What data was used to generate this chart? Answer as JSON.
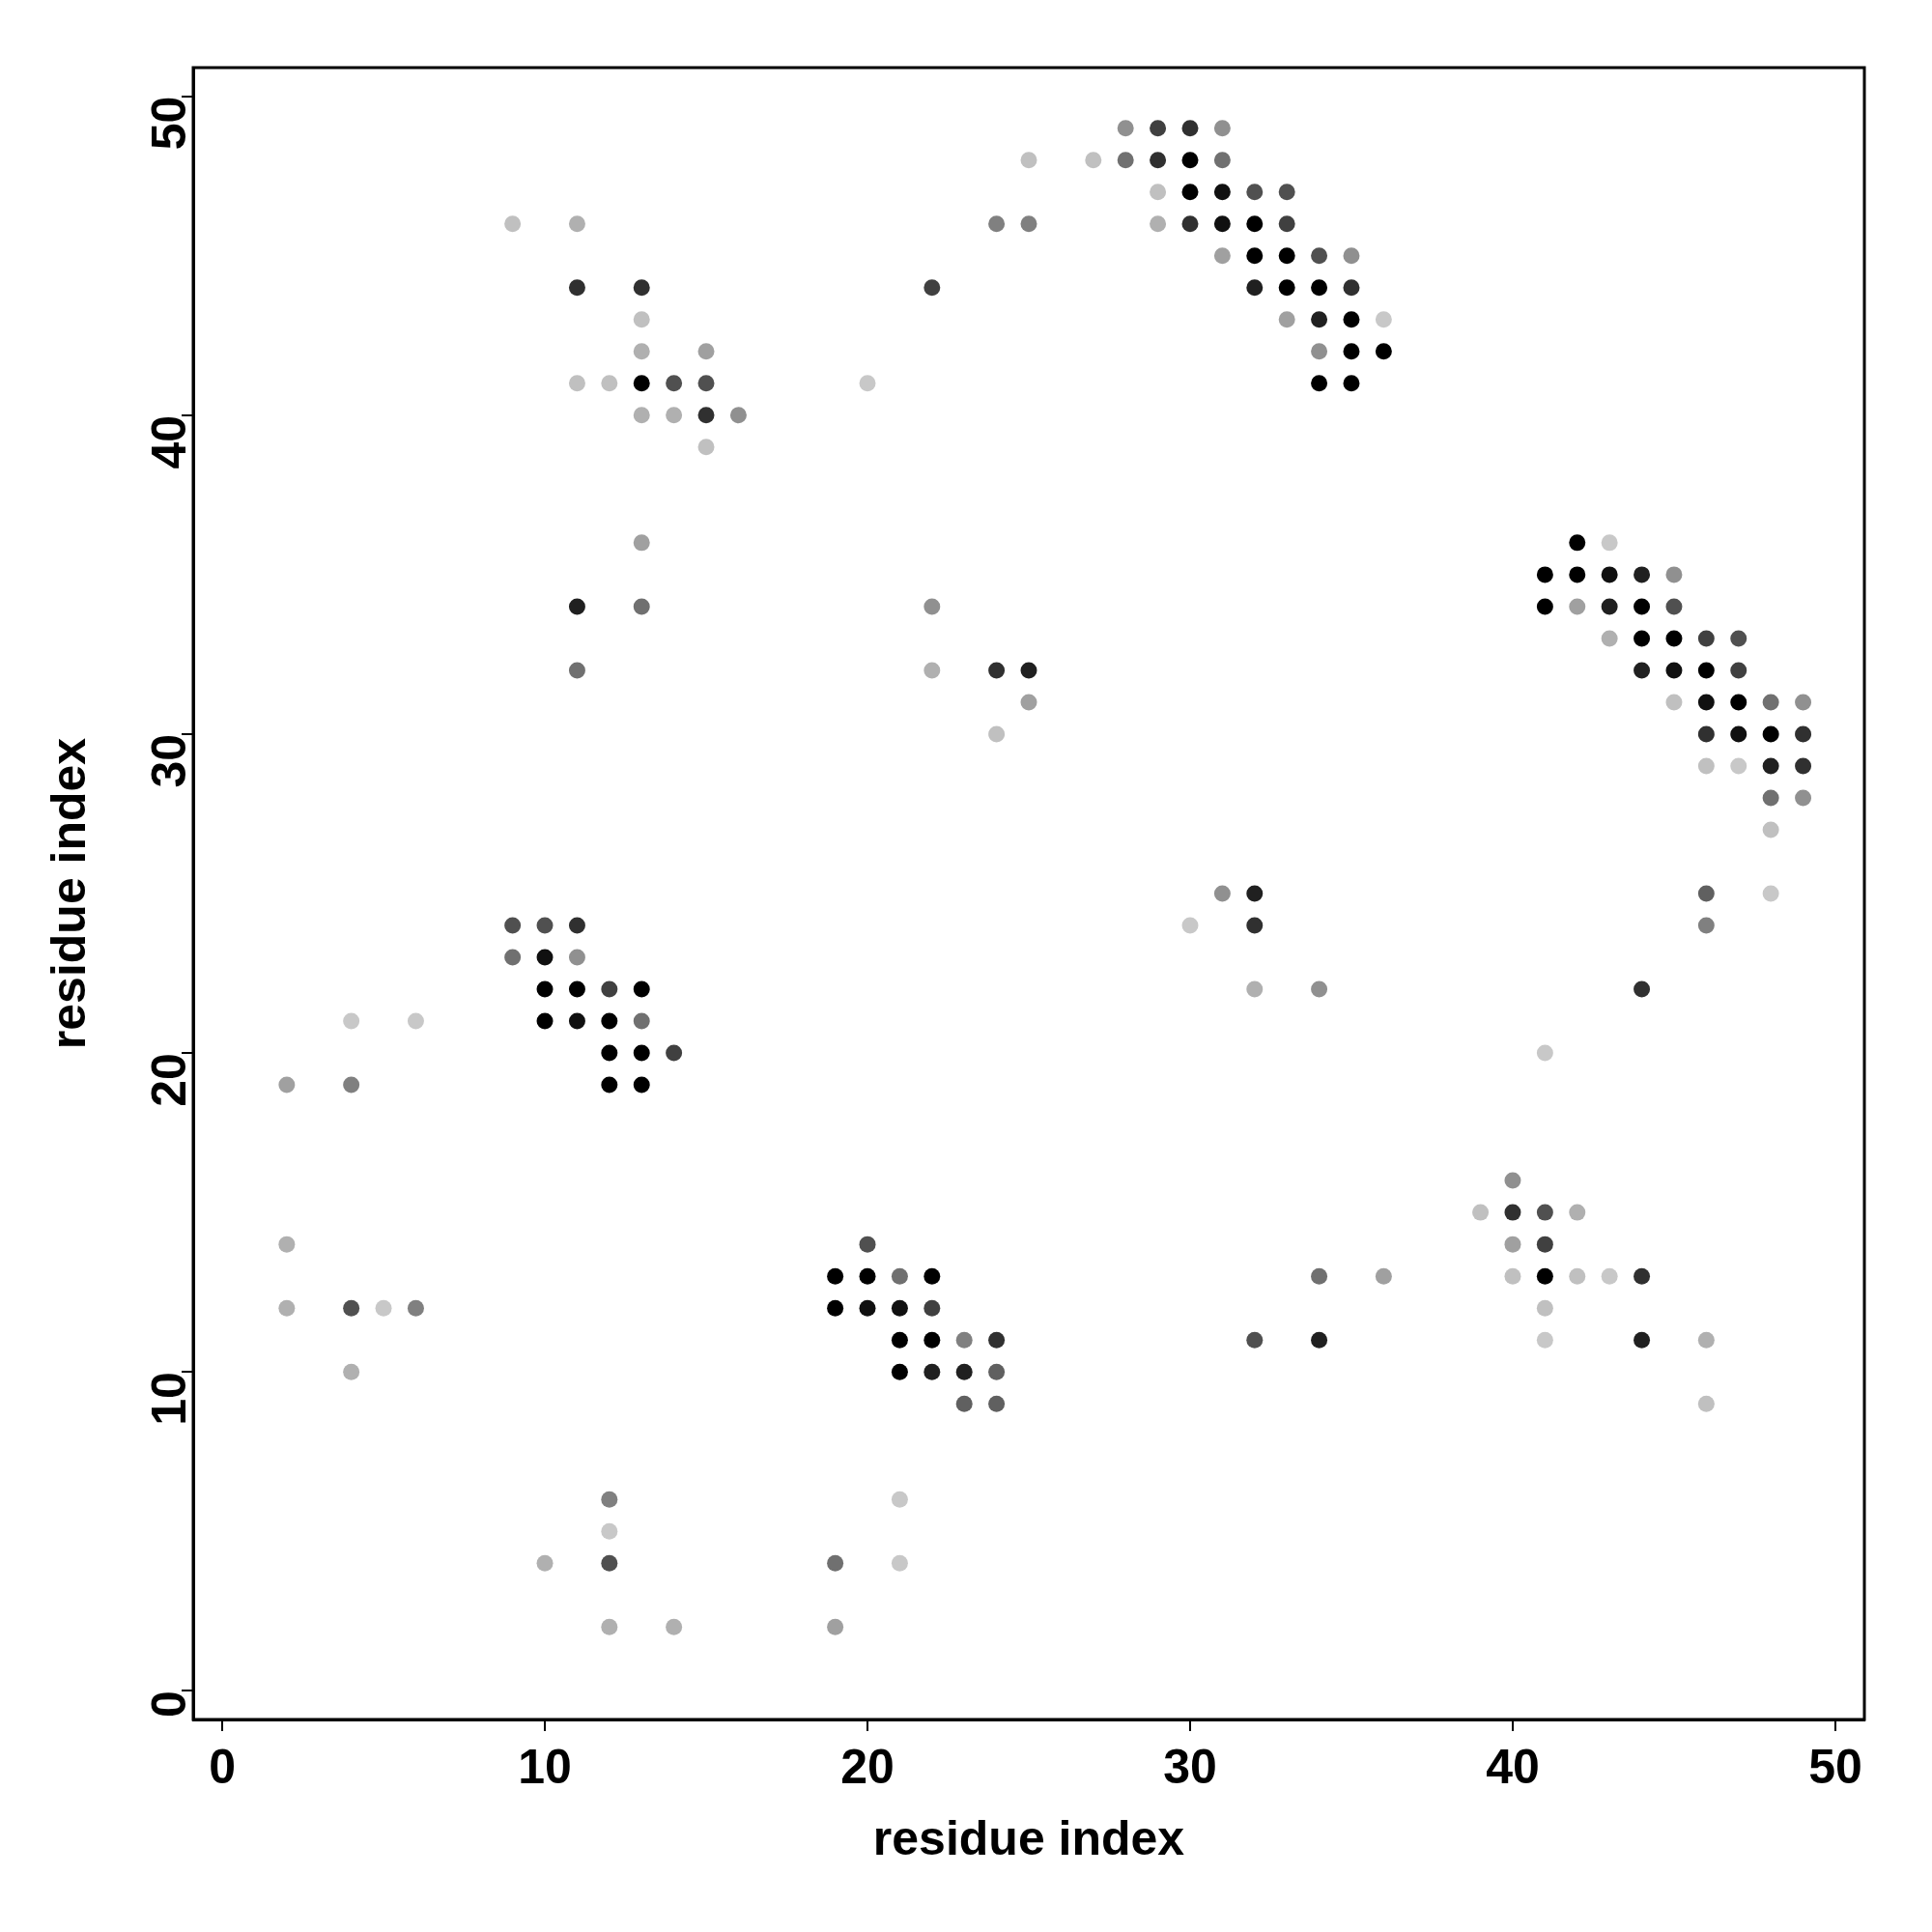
{
  "chart_data": {
    "type": "scatter",
    "xlabel": "residue index",
    "ylabel": "residue index",
    "xlim": [
      -0.9,
      50.9
    ],
    "ylim": [
      -0.9,
      50.9
    ],
    "xticks": [
      0,
      10,
      20,
      30,
      40,
      50
    ],
    "yticks": [
      0,
      10,
      20,
      30,
      40,
      50
    ],
    "grid": false,
    "legend": false,
    "marker": "circle",
    "series": [
      {
        "x": [
          28,
          29,
          30,
          31,
          25,
          27,
          28,
          29,
          30,
          31,
          29,
          30,
          31,
          32,
          33,
          9,
          11,
          24,
          25,
          29,
          30,
          31,
          32,
          33,
          31,
          32,
          33,
          34,
          35,
          11,
          13,
          22,
          32,
          33,
          34,
          35,
          13,
          33,
          34,
          35,
          36,
          13,
          15,
          34,
          35,
          36,
          11,
          12,
          13,
          14,
          15,
          20,
          34,
          35,
          13,
          14,
          15,
          16,
          15,
          13,
          42,
          43,
          41,
          42,
          43,
          44,
          45,
          11,
          13,
          22,
          41,
          42,
          43,
          44,
          45,
          43,
          44,
          45,
          46,
          47,
          11,
          22,
          24,
          25,
          44,
          45,
          46,
          47,
          25,
          45,
          46,
          47,
          48,
          49,
          24,
          46,
          47,
          48,
          49,
          46,
          47,
          48,
          49,
          48,
          49,
          48,
          31,
          32,
          46,
          48,
          9,
          10,
          11,
          30,
          32,
          46,
          9,
          10,
          11,
          10,
          11,
          12,
          13,
          32,
          34,
          44,
          4,
          6,
          10,
          11,
          12,
          13,
          12,
          13,
          14,
          41,
          2,
          4,
          12,
          13,
          40,
          39,
          40,
          41,
          42,
          2,
          20,
          40,
          41,
          19,
          20,
          21,
          22,
          34,
          36,
          40,
          41,
          42,
          43,
          44,
          2,
          4,
          5,
          6,
          19,
          20,
          21,
          22,
          41,
          21,
          22,
          23,
          24,
          32,
          34,
          41,
          44,
          46,
          4,
          21,
          22,
          23,
          24,
          23,
          24,
          46,
          12,
          21,
          12,
          10,
          12,
          19,
          21,
          12,
          14,
          19
        ],
        "values": [
          49,
          49,
          49,
          49,
          48,
          48,
          48,
          48,
          48,
          48,
          47,
          47,
          47,
          47,
          47,
          46,
          46,
          46,
          46,
          46,
          46,
          46,
          46,
          46,
          45,
          45,
          45,
          45,
          45,
          44,
          44,
          44,
          44,
          44,
          44,
          44,
          43,
          43,
          43,
          43,
          43,
          42,
          42,
          42,
          42,
          42,
          41,
          41,
          41,
          41,
          41,
          41,
          41,
          41,
          40,
          40,
          40,
          40,
          39,
          36,
          36,
          36,
          35,
          35,
          35,
          35,
          35,
          34,
          34,
          34,
          34,
          34,
          34,
          34,
          34,
          33,
          33,
          33,
          33,
          33,
          32,
          32,
          32,
          32,
          32,
          32,
          32,
          32,
          31,
          31,
          31,
          31,
          31,
          31,
          30,
          30,
          30,
          30,
          30,
          29,
          29,
          29,
          29,
          28,
          28,
          27,
          25,
          25,
          25,
          25,
          24,
          24,
          24,
          24,
          24,
          24,
          23,
          23,
          23,
          22,
          22,
          22,
          22,
          22,
          22,
          22,
          21,
          21,
          21,
          21,
          21,
          21,
          20,
          20,
          20,
          20,
          19,
          19,
          19,
          19,
          16,
          15,
          15,
          15,
          15,
          14,
          14,
          14,
          14,
          13,
          13,
          13,
          13,
          13,
          13,
          13,
          13,
          13,
          13,
          13,
          12,
          12,
          12,
          12,
          12,
          12,
          12,
          12,
          12,
          11,
          11,
          11,
          11,
          11,
          11,
          11,
          11,
          11,
          10,
          10,
          10,
          10,
          10,
          9,
          9,
          9,
          6,
          6,
          5,
          4,
          4,
          4,
          4,
          2,
          2,
          2
        ],
        "colors": [
          "#909090",
          "#404040",
          "#303030",
          "#909090",
          "#c0c0c0",
          "#c0c0c0",
          "#707070",
          "#303030",
          "#000000",
          "#707070",
          "#c0c0c0",
          "#000000",
          "#101010",
          "#505050",
          "#505050",
          "#c0c0c0",
          "#b0b0b0",
          "#808080",
          "#808080",
          "#b0b0b0",
          "#303030",
          "#101010",
          "#000000",
          "#404040",
          "#a0a0a0",
          "#000000",
          "#000000",
          "#505050",
          "#909090",
          "#303030",
          "#303030",
          "#404040",
          "#202020",
          "#000000",
          "#000000",
          "#303030",
          "#c0c0c0",
          "#a0a0a0",
          "#202020",
          "#000000",
          "#c8c8c8",
          "#b0b0b0",
          "#a0a0a0",
          "#909090",
          "#000000",
          "#000000",
          "#c0c0c0",
          "#c0c0c0",
          "#000000",
          "#505050",
          "#505050",
          "#c8c8c8",
          "#000000",
          "#000000",
          "#b0b0b0",
          "#b0b0b0",
          "#303030",
          "#909090",
          "#c0c0c0",
          "#a0a0a0",
          "#000000",
          "#c8c8c8",
          "#000000",
          "#000000",
          "#101010",
          "#202020",
          "#909090",
          "#202020",
          "#707070",
          "#909090",
          "#000000",
          "#a0a0a0",
          "#202020",
          "#000000",
          "#505050",
          "#b0b0b0",
          "#000000",
          "#000000",
          "#404040",
          "#505050",
          "#707070",
          "#b0b0b0",
          "#303030",
          "#202020",
          "#202020",
          "#101010",
          "#000000",
          "#404040",
          "#a0a0a0",
          "#c0c0c0",
          "#101010",
          "#000000",
          "#707070",
          "#909090",
          "#c0c0c0",
          "#303030",
          "#101010",
          "#000000",
          "#303030",
          "#c0c0c0",
          "#c8c8c8",
          "#202020",
          "#303030",
          "#707070",
          "#909090",
          "#c0c0c0",
          "#909090",
          "#202020",
          "#606060",
          "#c8c8c8",
          "#505050",
          "#505050",
          "#303030",
          "#c8c8c8",
          "#303030",
          "#808080",
          "#707070",
          "#101010",
          "#909090",
          "#000000",
          "#000000",
          "#404040",
          "#000000",
          "#b0b0b0",
          "#909090",
          "#303030",
          "#c8c8c8",
          "#c8c8c8",
          "#000000",
          "#101010",
          "#000000",
          "#707070",
          "#000000",
          "#000000",
          "#404040",
          "#c8c8c8",
          "#a0a0a0",
          "#808080",
          "#000000",
          "#000000",
          "#909090",
          "#c0c0c0",
          "#303030",
          "#505050",
          "#b0b0b0",
          "#b0b0b0",
          "#505050",
          "#a0a0a0",
          "#404040",
          "#000000",
          "#000000",
          "#707070",
          "#000000",
          "#707070",
          "#a0a0a0",
          "#c0c0c0",
          "#000000",
          "#c0c0c0",
          "#c8c8c8",
          "#303030",
          "#b0b0b0",
          "#505050",
          "#c8c8c8",
          "#808080",
          "#000000",
          "#101010",
          "#101010",
          "#404040",
          "#c0c0c0",
          "#000000",
          "#000000",
          "#808080",
          "#303030",
          "#505050",
          "#202020",
          "#c8c8c8",
          "#202020",
          "#b0b0b0",
          "#b0b0b0",
          "#000000",
          "#202020",
          "#202020",
          "#606060",
          "#606060",
          "#606060",
          "#c0c0c0",
          "#808080",
          "#c8c8c8",
          "#c8c8c8",
          "#b0b0b0",
          "#505050",
          "#707070",
          "#c8c8c8",
          "#b0b0b0",
          "#b0b0b0",
          "#a0a0a0"
        ]
      }
    ]
  }
}
